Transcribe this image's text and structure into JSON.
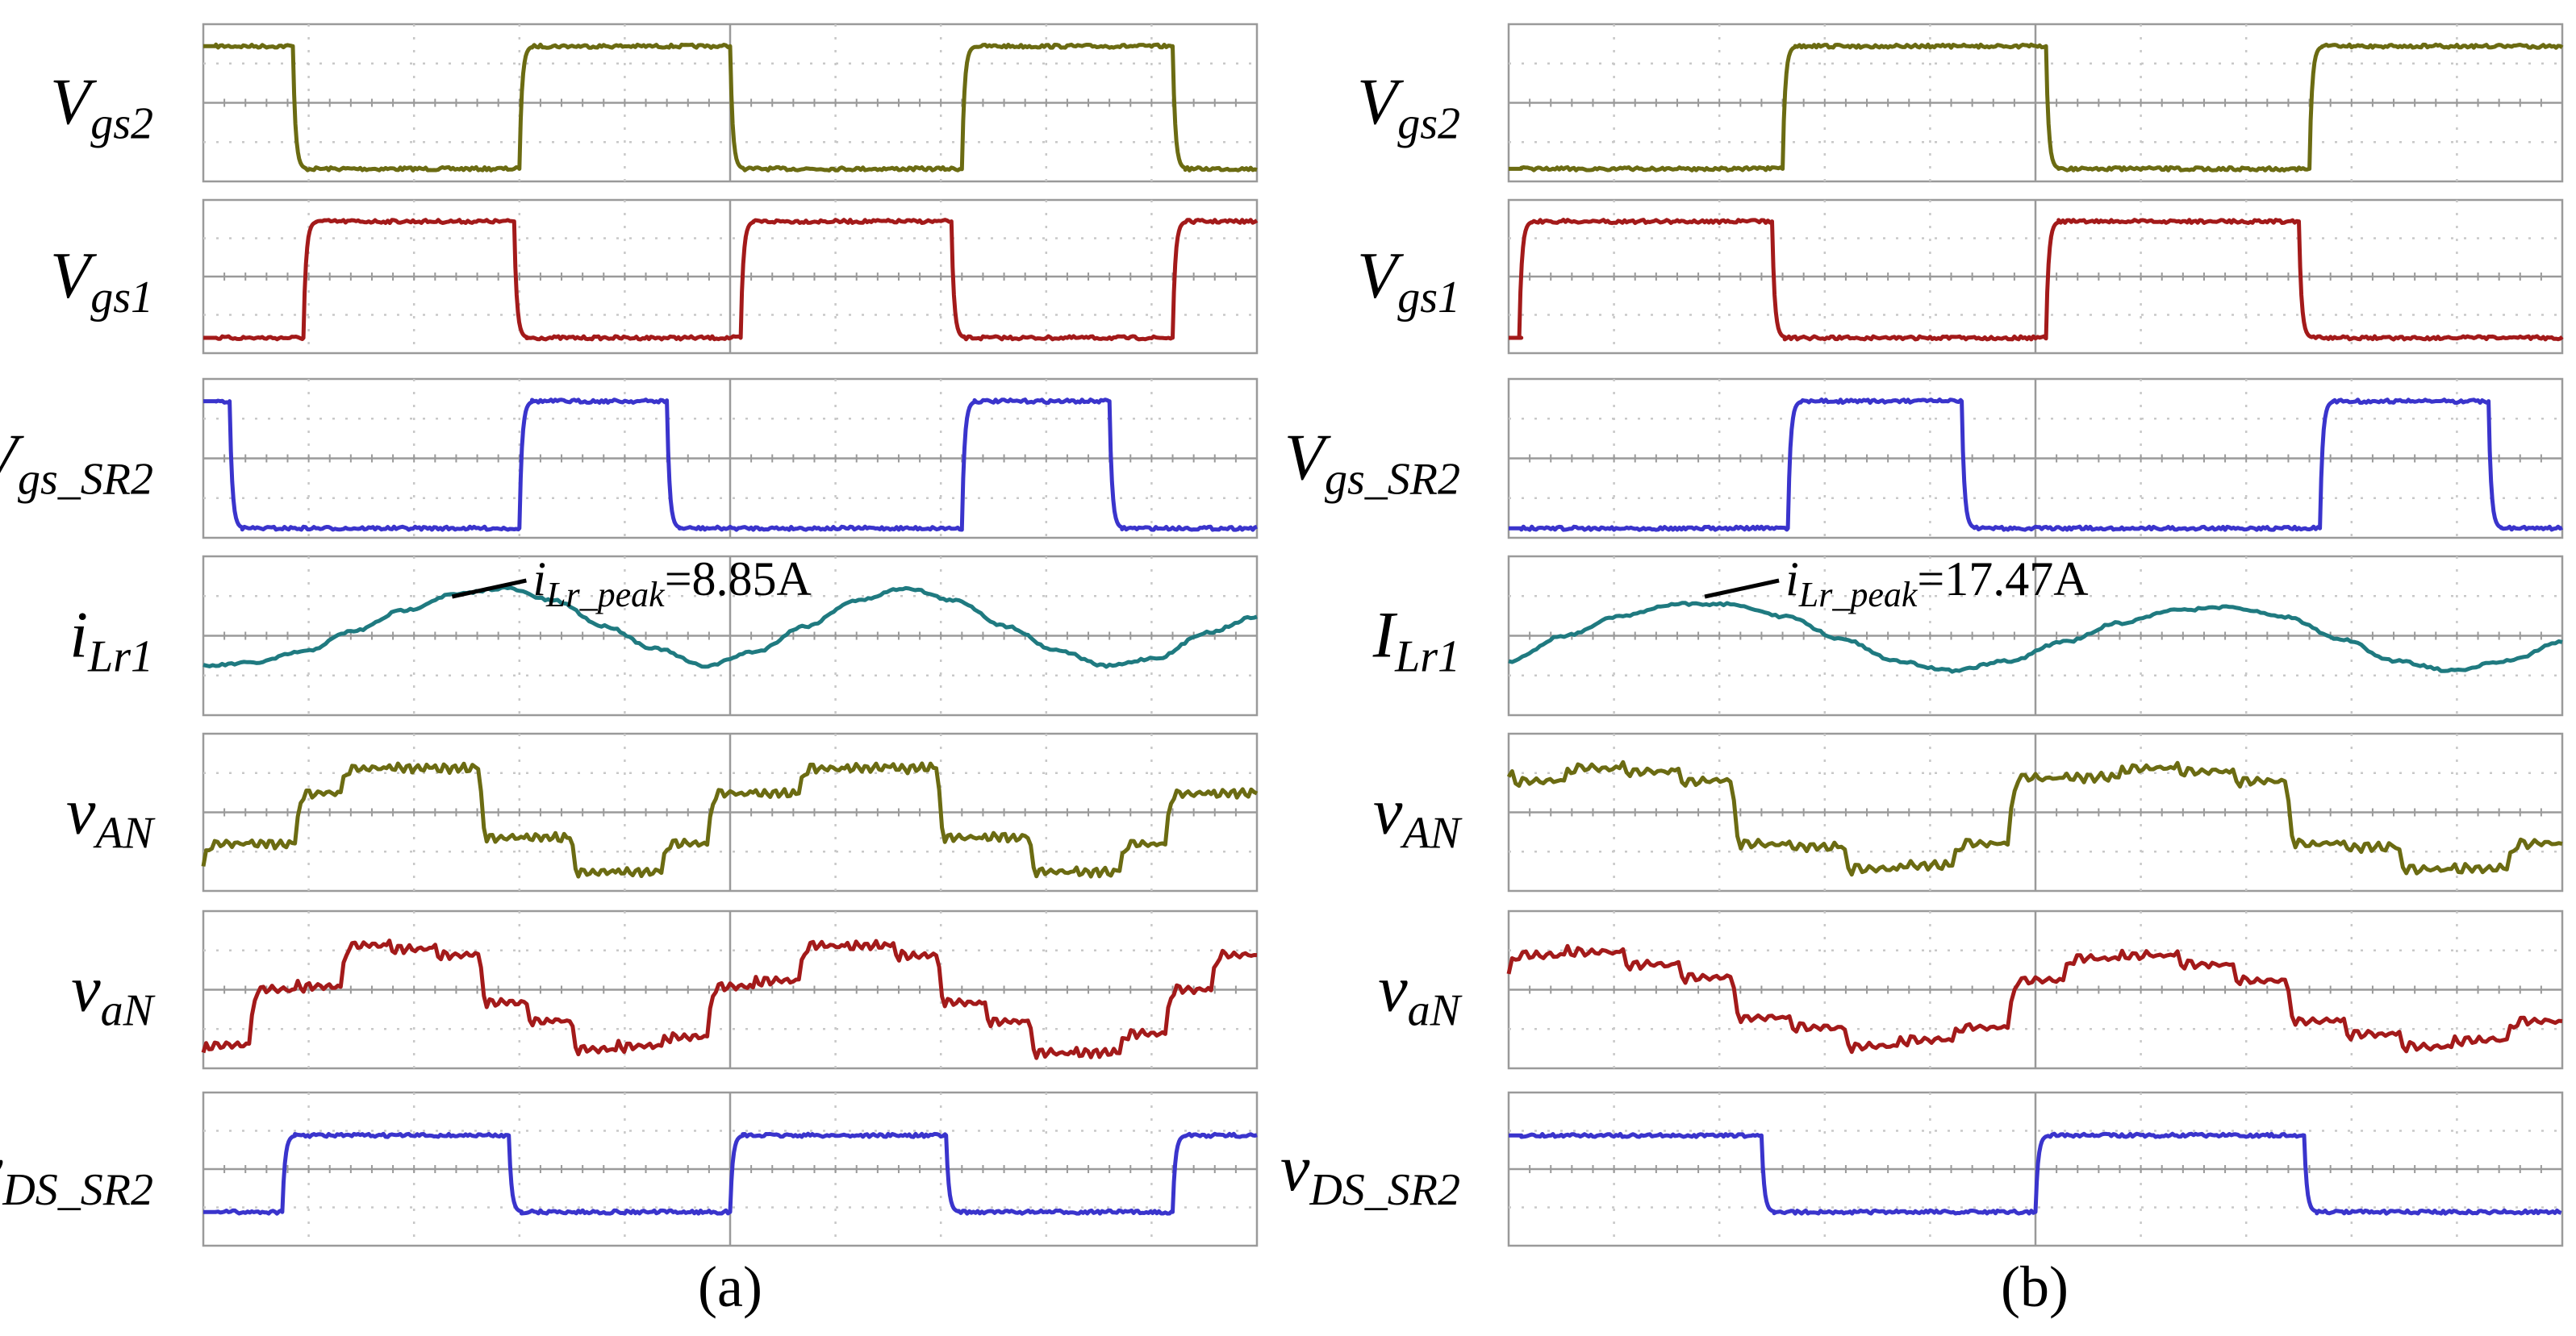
{
  "chart_data": [
    {
      "type": "line",
      "caption": "(a)",
      "x_divisions": 10,
      "y_divisions": 4,
      "ylim": [
        0,
        1
      ],
      "xlim": [
        0,
        10
      ],
      "annotation": {
        "italic": "i",
        "subscript": "Lr_peak",
        "suffix": "=8.85A",
        "trace": "iLr1",
        "at_x": 2.3
      },
      "series": [
        {
          "id": "vgs2",
          "name": "V",
          "sub": "gs2",
          "color": "#6b6b12",
          "kind": "square",
          "high": 0.86,
          "low": 0.08,
          "edges": [
            [
              0,
              "high"
            ],
            [
              0.85,
              "low"
            ],
            [
              3.0,
              "high"
            ],
            [
              5.0,
              "low"
            ],
            [
              7.2,
              "high"
            ],
            [
              9.2,
              "low"
            ]
          ]
        },
        {
          "id": "vgs1",
          "name": "V",
          "sub": "gs1",
          "color": "#a31a1a",
          "kind": "square",
          "high": 0.86,
          "low": 0.1,
          "edges": [
            [
              0,
              "low"
            ],
            [
              0.95,
              "high"
            ],
            [
              2.95,
              "low"
            ],
            [
              5.1,
              "high"
            ],
            [
              7.1,
              "low"
            ],
            [
              9.2,
              "high"
            ]
          ]
        },
        {
          "id": "vgssr2",
          "name": "V",
          "sub": "gs_SR2",
          "color": "#3a34cc",
          "kind": "square",
          "high": 0.86,
          "low": 0.06,
          "edges": [
            [
              0,
              "high"
            ],
            [
              0.25,
              "low"
            ],
            [
              3.0,
              "high"
            ],
            [
              4.4,
              "low"
            ],
            [
              7.2,
              "high"
            ],
            [
              8.6,
              "low"
            ]
          ]
        },
        {
          "id": "ilr1",
          "name": "i",
          "sub": "Lr1",
          "color": "#1f7a80",
          "kind": "sine",
          "mid": 0.5,
          "amp": 0.3,
          "period": 4.2,
          "phase_x": 0.2,
          "values": [
            0.31,
            0.33,
            0.4,
            0.53,
            0.66,
            0.76,
            0.8,
            0.72,
            0.56,
            0.42,
            0.31,
            0.4,
            0.56,
            0.72,
            0.8,
            0.72,
            0.56,
            0.41,
            0.31,
            0.36,
            0.52,
            0.62
          ]
        },
        {
          "id": "van",
          "name": "v",
          "sub": "AN",
          "color": "#6b6b12",
          "kind": "levels",
          "values": [
            0.15,
            0.3,
            0.3,
            0.62,
            0.78,
            0.78,
            0.78,
            0.34,
            0.34,
            0.12,
            0.12,
            0.3,
            0.62,
            0.62,
            0.78,
            0.78,
            0.78,
            0.34,
            0.34,
            0.12,
            0.12,
            0.3,
            0.62,
            0.62
          ]
        },
        {
          "id": "vanlow",
          "name": "v",
          "sub": "aN",
          "color": "#a31a1a",
          "kind": "levels",
          "values": [
            0.1,
            0.15,
            0.5,
            0.52,
            0.78,
            0.76,
            0.72,
            0.42,
            0.3,
            0.12,
            0.14,
            0.2,
            0.52,
            0.56,
            0.78,
            0.78,
            0.72,
            0.42,
            0.3,
            0.1,
            0.1,
            0.22,
            0.5,
            0.72
          ]
        },
        {
          "id": "vdssr2",
          "name": "v",
          "sub": "DS_SR2",
          "color": "#3a34cc",
          "kind": "square",
          "high": 0.72,
          "low": 0.22,
          "edges": [
            [
              0,
              "low"
            ],
            [
              0.75,
              "high"
            ],
            [
              2.9,
              "low"
            ],
            [
              5.0,
              "high"
            ],
            [
              7.05,
              "low"
            ],
            [
              9.2,
              "high"
            ]
          ]
        }
      ]
    },
    {
      "type": "line",
      "caption": "(b)",
      "x_divisions": 10,
      "y_divisions": 4,
      "ylim": [
        0,
        1
      ],
      "xlim": [
        0,
        10
      ],
      "annotation": {
        "italic": "i",
        "subscript": "Lr_peak",
        "suffix": "=17.47A",
        "trace": "ILr1",
        "at_x": 1.8
      },
      "series": [
        {
          "id": "vgs2",
          "name": "V",
          "sub": "gs2",
          "color": "#6b6b12",
          "kind": "square",
          "high": 0.86,
          "low": 0.08,
          "edges": [
            [
              0,
              "low"
            ],
            [
              2.6,
              "high"
            ],
            [
              5.1,
              "low"
            ],
            [
              7.6,
              "high"
            ]
          ]
        },
        {
          "id": "vgs1",
          "name": "V",
          "sub": "gs1",
          "color": "#a31a1a",
          "kind": "square",
          "high": 0.86,
          "low": 0.1,
          "edges": [
            [
              0,
              "low"
            ],
            [
              0.1,
              "high"
            ],
            [
              2.5,
              "low"
            ],
            [
              5.1,
              "high"
            ],
            [
              7.5,
              "low"
            ]
          ]
        },
        {
          "id": "vgssr2",
          "name": "V",
          "sub": "gs_SR2",
          "color": "#3a34cc",
          "kind": "square",
          "high": 0.86,
          "low": 0.06,
          "edges": [
            [
              0,
              "low"
            ],
            [
              2.65,
              "high"
            ],
            [
              4.3,
              "low"
            ],
            [
              7.7,
              "high"
            ],
            [
              9.3,
              "low"
            ]
          ]
        },
        {
          "id": "ilr1",
          "name": "I",
          "sub": "Lr1",
          "color": "#1f7a80",
          "kind": "sine",
          "values": [
            0.34,
            0.5,
            0.62,
            0.7,
            0.7,
            0.62,
            0.48,
            0.34,
            0.28,
            0.34,
            0.46,
            0.58,
            0.66,
            0.68,
            0.62,
            0.48,
            0.34,
            0.28,
            0.34,
            0.46
          ]
        },
        {
          "id": "van",
          "name": "v",
          "sub": "AN",
          "color": "#6b6b12",
          "kind": "levels",
          "values": [
            0.72,
            0.7,
            0.78,
            0.76,
            0.7,
            0.3,
            0.28,
            0.14,
            0.16,
            0.3,
            0.72,
            0.72,
            0.78,
            0.76,
            0.7,
            0.3,
            0.28,
            0.14,
            0.14,
            0.3
          ]
        },
        {
          "id": "vanlow",
          "name": "v",
          "sub": "aN",
          "color": "#a31a1a",
          "kind": "levels",
          "values": [
            0.6,
            0.72,
            0.74,
            0.66,
            0.58,
            0.32,
            0.26,
            0.14,
            0.18,
            0.26,
            0.56,
            0.7,
            0.72,
            0.66,
            0.56,
            0.3,
            0.22,
            0.14,
            0.18,
            0.3
          ]
        },
        {
          "id": "vdssr2",
          "name": "v",
          "sub": "DS_SR2",
          "color": "#3a34cc",
          "kind": "square",
          "high": 0.72,
          "low": 0.22,
          "edges": [
            [
              0,
              "high"
            ],
            [
              2.4,
              "low"
            ],
            [
              5.0,
              "high"
            ],
            [
              7.55,
              "low"
            ]
          ]
        }
      ]
    }
  ]
}
